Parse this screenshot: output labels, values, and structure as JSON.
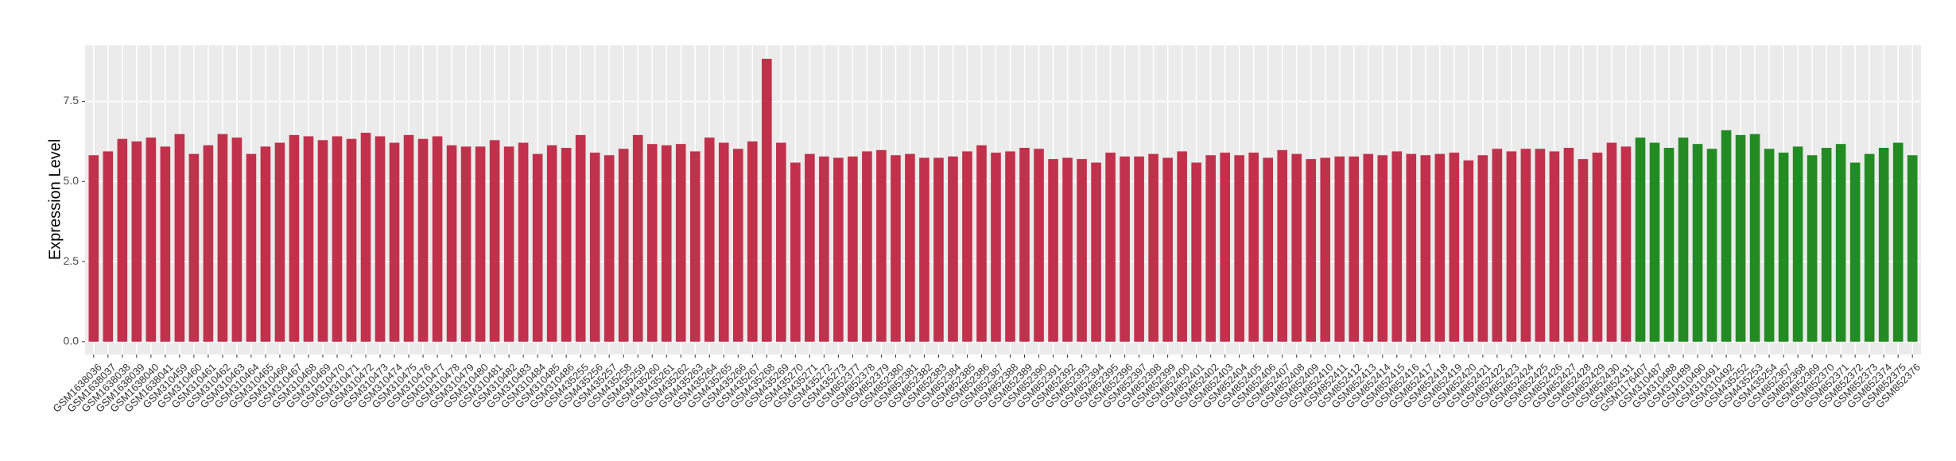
{
  "chart_data": {
    "type": "bar",
    "y_label": "Expression Level",
    "categories": [
      "GSM1638036",
      "GSM1638037",
      "GSM1638038",
      "GSM1638039",
      "GSM1638040",
      "GSM1638041",
      "GSM310459",
      "GSM310460",
      "GSM310461",
      "GSM310462",
      "GSM310463",
      "GSM310464",
      "GSM310465",
      "GSM310466",
      "GSM310467",
      "GSM310468",
      "GSM310469",
      "GSM310470",
      "GSM310471",
      "GSM310472",
      "GSM310473",
      "GSM310474",
      "GSM310475",
      "GSM310476",
      "GSM310477",
      "GSM310478",
      "GSM310479",
      "GSM310480",
      "GSM310481",
      "GSM310482",
      "GSM310483",
      "GSM310484",
      "GSM310485",
      "GSM310486",
      "GSM435255",
      "GSM435256",
      "GSM435257",
      "GSM435258",
      "GSM435259",
      "GSM435260",
      "GSM435261",
      "GSM435262",
      "GSM435263",
      "GSM435264",
      "GSM435265",
      "GSM435266",
      "GSM435267",
      "GSM435268",
      "GSM435269",
      "GSM435270",
      "GSM435271",
      "GSM435272",
      "GSM435273",
      "GSM852377",
      "GSM852378",
      "GSM852379",
      "GSM852380",
      "GSM852381",
      "GSM852382",
      "GSM852383",
      "GSM852384",
      "GSM852385",
      "GSM852386",
      "GSM852387",
      "GSM852388",
      "GSM852389",
      "GSM852390",
      "GSM852391",
      "GSM852392",
      "GSM852393",
      "GSM852394",
      "GSM852395",
      "GSM852396",
      "GSM852397",
      "GSM852398",
      "GSM852399",
      "GSM852400",
      "GSM852401",
      "GSM852402",
      "GSM852403",
      "GSM852404",
      "GSM852405",
      "GSM852406",
      "GSM852407",
      "GSM852408",
      "GSM852409",
      "GSM852410",
      "GSM852411",
      "GSM852412",
      "GSM852413",
      "GSM852414",
      "GSM852415",
      "GSM852416",
      "GSM852417",
      "GSM852418",
      "GSM852419",
      "GSM852420",
      "GSM852421",
      "GSM852422",
      "GSM852423",
      "GSM852424",
      "GSM852425",
      "GSM852426",
      "GSM852427",
      "GSM852428",
      "GSM852429",
      "GSM852430",
      "GSM852431",
      "GSM1176407",
      "GSM310487",
      "GSM310488",
      "GSM310489",
      "GSM310490",
      "GSM310491",
      "GSM310492",
      "GSM435252",
      "GSM435253",
      "GSM435254",
      "GSM852367",
      "GSM852368",
      "GSM852369",
      "GSM852370",
      "GSM852371",
      "GSM852372",
      "GSM852373",
      "GSM852374",
      "GSM852375",
      "GSM852376"
    ],
    "values": [
      5.82,
      5.94,
      6.33,
      6.25,
      6.37,
      6.09,
      6.48,
      5.86,
      6.13,
      6.48,
      6.37,
      5.86,
      6.09,
      6.21,
      6.45,
      6.41,
      6.29,
      6.41,
      6.33,
      6.52,
      6.41,
      6.21,
      6.45,
      6.33,
      6.41,
      6.13,
      6.09,
      6.09,
      6.29,
      6.09,
      6.21,
      5.86,
      6.13,
      6.05,
      6.45,
      5.9,
      5.82,
      6.02,
      6.45,
      6.17,
      6.13,
      6.17,
      5.94,
      6.37,
      6.21,
      6.02,
      6.25,
      8.83,
      6.21,
      5.59,
      5.86,
      5.78,
      5.74,
      5.78,
      5.94,
      5.98,
      5.82,
      5.86,
      5.74,
      5.74,
      5.78,
      5.94,
      6.13,
      5.9,
      5.94,
      6.05,
      6.02,
      5.7,
      5.74,
      5.7,
      5.59,
      5.9,
      5.78,
      5.78,
      5.86,
      5.74,
      5.94,
      5.59,
      5.82,
      5.9,
      5.82,
      5.9,
      5.74,
      5.98,
      5.86,
      5.7,
      5.74,
      5.78,
      5.78,
      5.86,
      5.82,
      5.94,
      5.86,
      5.82,
      5.86,
      5.9,
      5.66,
      5.82,
      6.02,
      5.94,
      6.02,
      6.02,
      5.94,
      6.05,
      5.7,
      5.9,
      6.21,
      6.09,
      6.37,
      6.21,
      6.05,
      6.37,
      6.17,
      6.02,
      6.6,
      6.45,
      6.48,
      6.02,
      5.9,
      6.09,
      5.82,
      6.05,
      6.17,
      5.59,
      5.86,
      6.05,
      6.21,
      5.82
    ],
    "colors": [
      "#c1314b",
      "#c1314b",
      "#c1314b",
      "#c1314b",
      "#c1314b",
      "#c1314b",
      "#c1314b",
      "#c1314b",
      "#c1314b",
      "#c1314b",
      "#c1314b",
      "#c1314b",
      "#c1314b",
      "#c1314b",
      "#c1314b",
      "#c1314b",
      "#c1314b",
      "#c1314b",
      "#c1314b",
      "#c1314b",
      "#c1314b",
      "#c1314b",
      "#c1314b",
      "#c1314b",
      "#c1314b",
      "#c1314b",
      "#c1314b",
      "#c1314b",
      "#c1314b",
      "#c1314b",
      "#c1314b",
      "#c1314b",
      "#c1314b",
      "#c1314b",
      "#c1314b",
      "#c1314b",
      "#c1314b",
      "#c1314b",
      "#c1314b",
      "#c1314b",
      "#c1314b",
      "#c1314b",
      "#c1314b",
      "#c1314b",
      "#c1314b",
      "#c1314b",
      "#c1314b",
      "#c1314b",
      "#c1314b",
      "#c1314b",
      "#c1314b",
      "#c1314b",
      "#c1314b",
      "#c1314b",
      "#c1314b",
      "#c1314b",
      "#c1314b",
      "#c1314b",
      "#c1314b",
      "#c1314b",
      "#c1314b",
      "#c1314b",
      "#c1314b",
      "#c1314b",
      "#c1314b",
      "#c1314b",
      "#c1314b",
      "#c1314b",
      "#c1314b",
      "#c1314b",
      "#c1314b",
      "#c1314b",
      "#c1314b",
      "#c1314b",
      "#c1314b",
      "#c1314b",
      "#c1314b",
      "#c1314b",
      "#c1314b",
      "#c1314b",
      "#c1314b",
      "#c1314b",
      "#c1314b",
      "#c1314b",
      "#c1314b",
      "#c1314b",
      "#c1314b",
      "#c1314b",
      "#c1314b",
      "#c1314b",
      "#c1314b",
      "#c1314b",
      "#c1314b",
      "#c1314b",
      "#c1314b",
      "#c1314b",
      "#c1314b",
      "#c1314b",
      "#c1314b",
      "#c1314b",
      "#c1314b",
      "#c1314b",
      "#c1314b",
      "#c1314b",
      "#c1314b",
      "#c1314b",
      "#c1314b",
      "#c1314b",
      "#228b22",
      "#228b22",
      "#228b22",
      "#228b22",
      "#228b22",
      "#228b22",
      "#228b22",
      "#228b22",
      "#228b22",
      "#228b22",
      "#228b22",
      "#228b22",
      "#228b22",
      "#228b22",
      "#228b22",
      "#228b22",
      "#228b22",
      "#228b22",
      "#228b22",
      "#228b22"
    ],
    "ylim": [
      -0.4,
      9.25
    ],
    "yticks": [
      {
        "value": 0,
        "label": "0.0"
      },
      {
        "value": 2.5,
        "label": "2.5"
      },
      {
        "value": 5,
        "label": "5.0"
      },
      {
        "value": 7.5,
        "label": "7.5"
      }
    ],
    "grid": true
  }
}
